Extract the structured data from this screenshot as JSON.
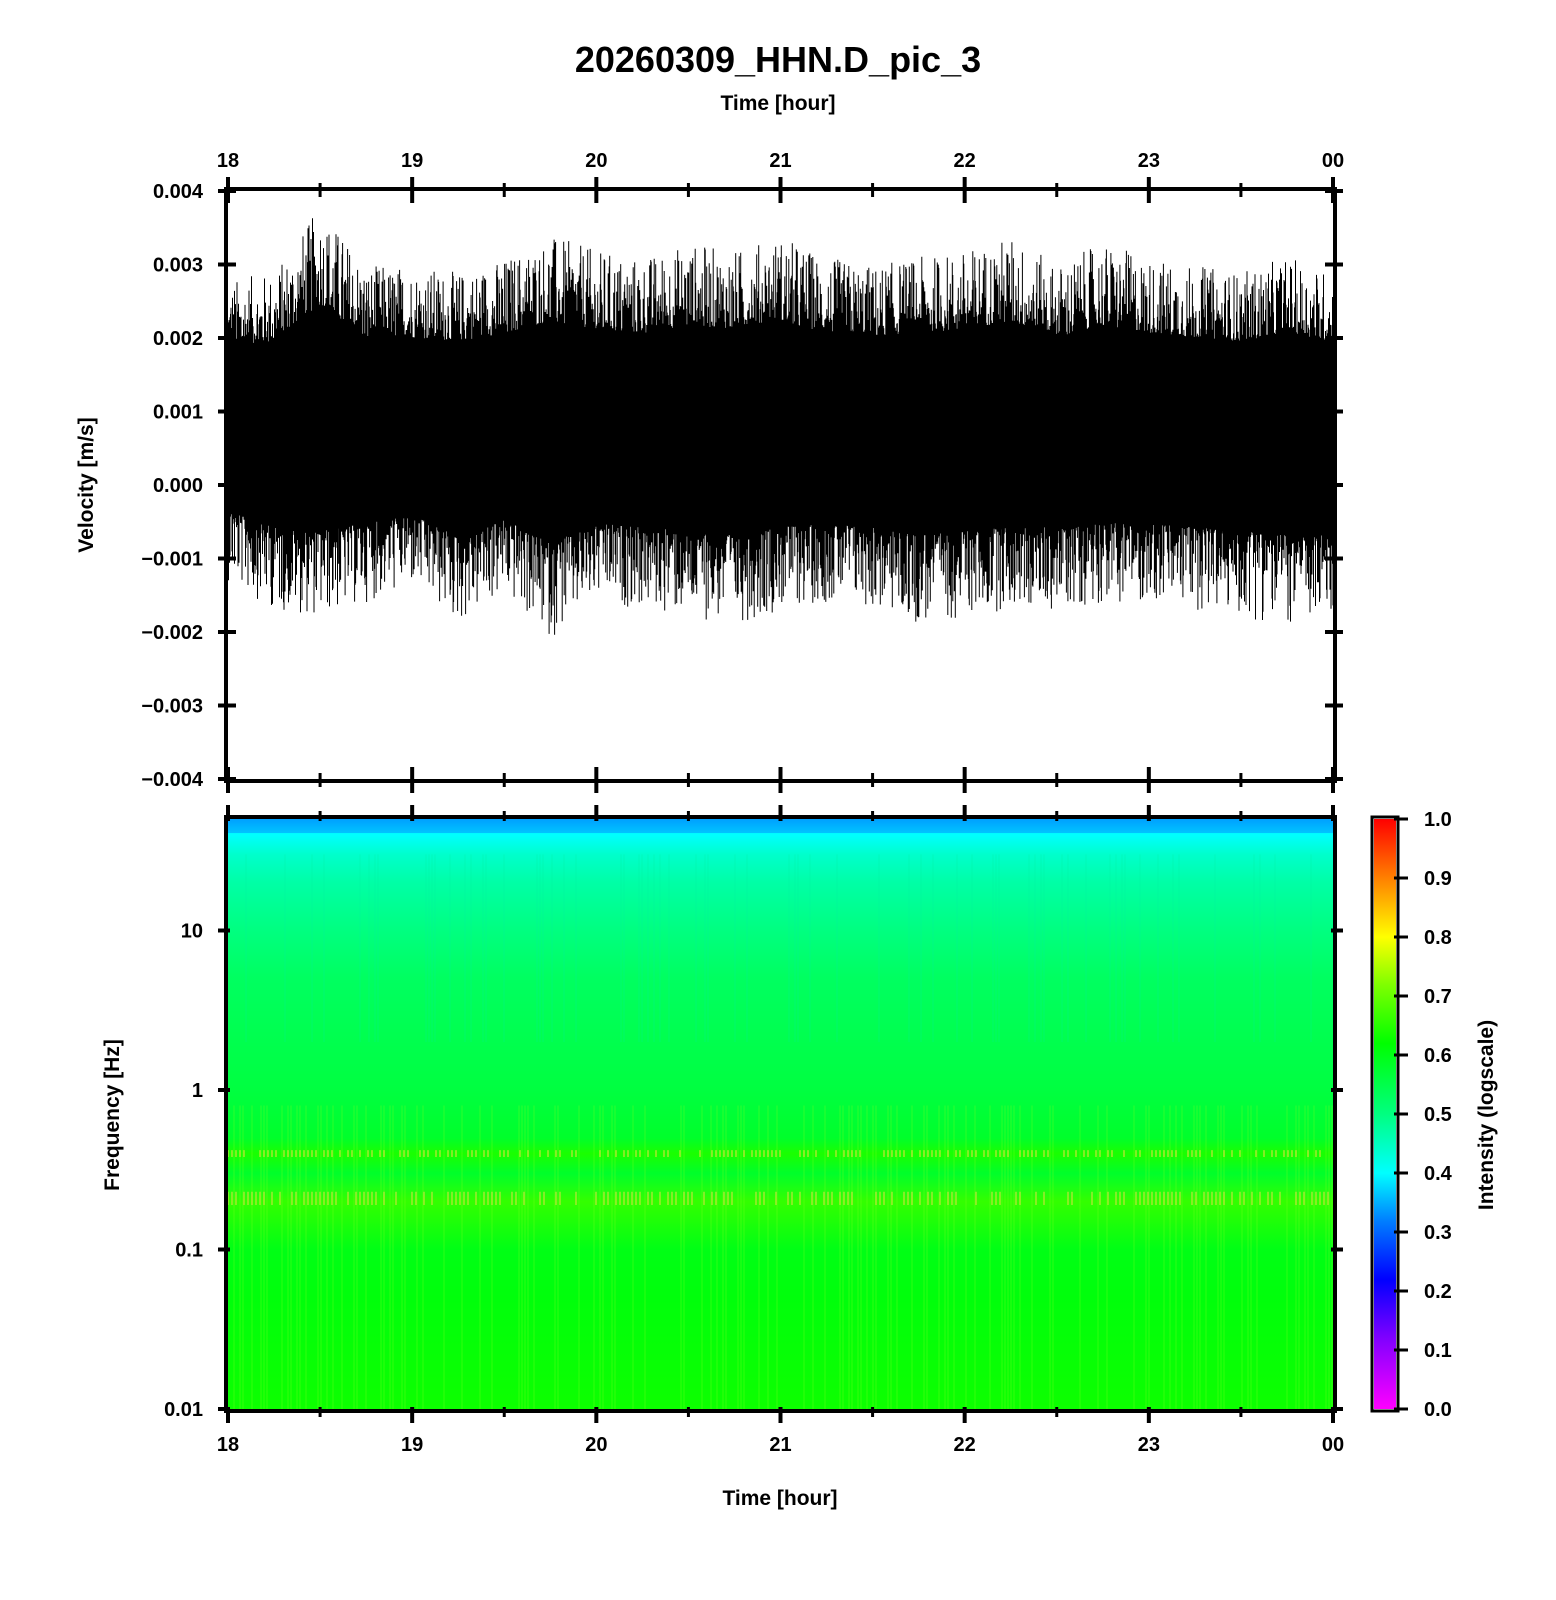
{
  "title": "20260309_HHN.D_pic_3",
  "chart_data": [
    {
      "type": "line",
      "panel": "seismogram",
      "xlabel": "Time [hour]",
      "ylabel": "Velocity [m/s]",
      "x_ticks": [
        "18",
        "19",
        "20",
        "21",
        "22",
        "23",
        "00"
      ],
      "xlim": [
        18,
        24
      ],
      "ylim": [
        -0.004,
        0.004
      ],
      "y_ticks": [
        "0.004",
        "0.003",
        "0.002",
        "0.001",
        "0.000",
        "−0.001",
        "−0.002",
        "−0.003",
        "−0.004"
      ],
      "series": [
        {
          "x_hours": [
            18.0,
            18.25,
            18.5,
            18.75,
            19.0,
            19.25,
            19.5,
            19.75,
            20.0,
            20.25,
            20.5,
            20.75,
            21.0,
            21.25,
            21.5,
            21.75,
            22.0,
            22.25,
            22.5,
            22.75,
            23.0,
            23.25,
            23.5,
            23.75,
            24.0
          ],
          "upper_envelope": [
            0.0028,
            0.0029,
            0.0038,
            0.003,
            0.003,
            0.0029,
            0.0031,
            0.0034,
            0.0032,
            0.0031,
            0.0033,
            0.0032,
            0.0034,
            0.0031,
            0.003,
            0.0031,
            0.0032,
            0.0034,
            0.003,
            0.0033,
            0.0031,
            0.003,
            0.0029,
            0.0031,
            0.0029
          ],
          "lower_envelope": [
            -0.0013,
            -0.0017,
            -0.0018,
            -0.0016,
            -0.0014,
            -0.0019,
            -0.0015,
            -0.0021,
            -0.0016,
            -0.0017,
            -0.0018,
            -0.0019,
            -0.0017,
            -0.0016,
            -0.0017,
            -0.0019,
            -0.0018,
            -0.0017,
            -0.0017,
            -0.0016,
            -0.0016,
            -0.0017,
            -0.0018,
            -0.0019,
            -0.0019
          ],
          "mean": 0.0008,
          "color": "#000000"
        }
      ]
    },
    {
      "type": "heatmap",
      "panel": "spectrogram",
      "xlabel": "Time [hour]",
      "ylabel": "Frequency [Hz]",
      "x_ticks": [
        "18",
        "19",
        "20",
        "21",
        "22",
        "23",
        "00"
      ],
      "xlim": [
        18,
        24
      ],
      "ylim": [
        0.01,
        50
      ],
      "y_scale": "log",
      "y_ticks": [
        "10",
        "1",
        "0.1",
        "0.01"
      ],
      "intensity_profile": {
        "frequency_hz": [
          50,
          40,
          30,
          20,
          10,
          5,
          1,
          0.5,
          0.4,
          0.3,
          0.2,
          0.1,
          0.05,
          0.01
        ],
        "intensity": [
          0.35,
          0.4,
          0.44,
          0.47,
          0.5,
          0.53,
          0.56,
          0.58,
          0.64,
          0.58,
          0.66,
          0.6,
          0.61,
          0.63
        ]
      },
      "colorbar": {
        "label": "Intensity (logscale)",
        "range": [
          0.0,
          1.0
        ],
        "ticks": [
          "1.0",
          "0.9",
          "0.8",
          "0.7",
          "0.6",
          "0.5",
          "0.4",
          "0.3",
          "0.2",
          "0.1",
          "0.0"
        ],
        "colors": [
          "#ff00ff",
          "#0000ff",
          "#00a0ff",
          "#00ffff",
          "#00ff80",
          "#00ff00",
          "#ffff00",
          "#ff8000",
          "#ff0000"
        ]
      }
    }
  ]
}
